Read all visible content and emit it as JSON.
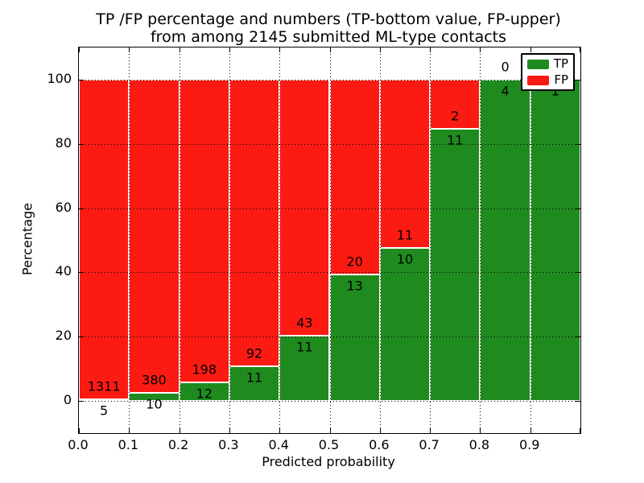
{
  "title": {
    "line1": "TP /FP percentage and numbers (TP-bottom value, FP-upper)",
    "line2": "from among 2145 submitted ML-type contacts"
  },
  "chart_data": {
    "type": "bar",
    "stacked": true,
    "title": "TP /FP percentage and numbers (TP-bottom value, FP-upper) from among 2145 submitted ML-type contacts",
    "total_contacts": 2145,
    "xlabel": "Predicted probability",
    "ylabel": "Percentage",
    "bin_edges": [
      0.0,
      0.1,
      0.2,
      0.3,
      0.4,
      0.5,
      0.6,
      0.7,
      0.8,
      0.9,
      1.0
    ],
    "categories": [
      "0.0-0.1",
      "0.1-0.2",
      "0.2-0.3",
      "0.3-0.4",
      "0.4-0.5",
      "0.5-0.6",
      "0.6-0.7",
      "0.7-0.8",
      "0.8-0.9",
      "0.9-1.0"
    ],
    "series": [
      {
        "name": "TP",
        "color": "#1f8b1f",
        "counts": [
          5,
          10,
          12,
          11,
          11,
          13,
          10,
          11,
          4,
          1
        ]
      },
      {
        "name": "FP",
        "color": "#fb1b13",
        "counts": [
          1311,
          380,
          198,
          92,
          43,
          20,
          11,
          2,
          0,
          0
        ]
      }
    ],
    "tp_percent": [
      0.38,
      2.56,
      5.71,
      10.68,
      20.37,
      39.39,
      47.62,
      84.62,
      100.0,
      100.0
    ],
    "x_ticks": [
      "0.0",
      "0.1",
      "0.2",
      "0.3",
      "0.4",
      "0.5",
      "0.6",
      "0.7",
      "0.8",
      "0.9"
    ],
    "y_ticks": [
      "0",
      "20",
      "40",
      "60",
      "80",
      "100"
    ],
    "xlim": [
      0.0,
      1.0
    ],
    "ylim": [
      -10,
      110
    ],
    "grid": "dotted",
    "legend": {
      "position": "upper right",
      "entries": [
        {
          "label": "TP",
          "color": "#1f8b1f"
        },
        {
          "label": "FP",
          "color": "#fb1b13"
        }
      ]
    }
  }
}
